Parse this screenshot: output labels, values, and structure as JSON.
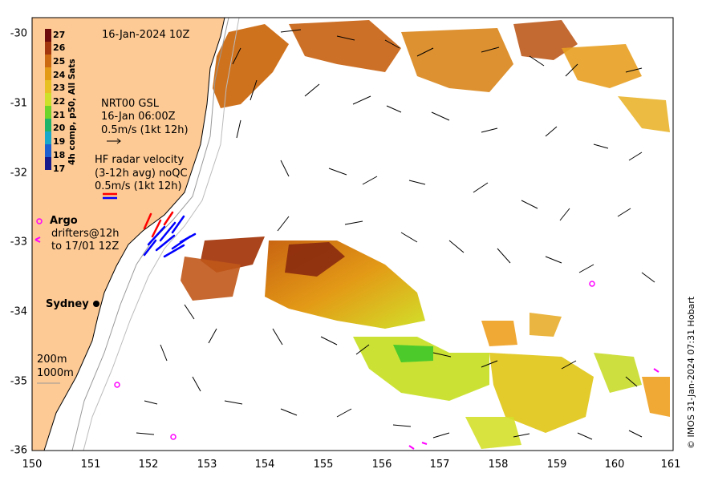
{
  "title": "16-Jan-2024 10Z",
  "colorbar": {
    "title": "4h comp, p50, All Sats",
    "ticks": [
      "27",
      "26",
      "25",
      "24",
      "23",
      "22",
      "21",
      "20",
      "19",
      "18",
      "17"
    ],
    "colors": [
      "#6e0b0b",
      "#a4360e",
      "#cc6a12",
      "#e39a16",
      "#e8c023",
      "#cfe02a",
      "#6fd42a",
      "#1fb36a",
      "#18a8c9",
      "#1d5fd1",
      "#161a8a"
    ]
  },
  "model_legend": {
    "line1": "NRT00 GSL",
    "line2": "16-Jan 06:00Z",
    "line3": "0.5m/s (1kt 12h)"
  },
  "hf_legend": {
    "line1": "HF radar velocity",
    "line2": "(3-12h avg) noQC",
    "line3": "0.5m/s (1kt 12h)"
  },
  "argo_label": "Argo",
  "drifters": {
    "line1": "drifters@12h",
    "line2": "to 17/01 12Z"
  },
  "city_label": "Sydney",
  "isobaths": {
    "line1": "200m",
    "line2": "1000m"
  },
  "copyright": "© IMOS 31-Jan-2024 07:31 Hobart",
  "x_ticks": [
    "150",
    "151",
    "152",
    "153",
    "154",
    "155",
    "156",
    "157",
    "158",
    "159",
    "160",
    "161"
  ],
  "y_ticks": [
    "-30",
    "-31",
    "-32",
    "-33",
    "-34",
    "-35",
    "-36"
  ],
  "colors": {
    "land": "#fdc994",
    "argo": "#ff00ff",
    "hf_red": "#ff0000",
    "hf_blue": "#0000ff"
  }
}
